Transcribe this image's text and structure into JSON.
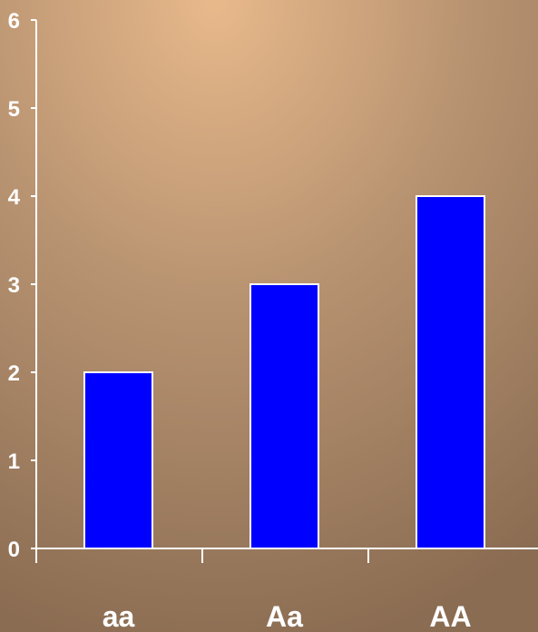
{
  "chart_data": {
    "type": "bar",
    "categories": [
      "aa",
      "Aa",
      "AA"
    ],
    "values": [
      2,
      3,
      4
    ],
    "title": "",
    "xlabel": "",
    "ylabel": "",
    "ylim": [
      0,
      6
    ],
    "yticks": [
      0,
      1,
      2,
      3,
      4,
      5,
      6
    ],
    "grid": false,
    "legend": "none",
    "colors": {
      "bar_fill": "#0000ff",
      "bar_stroke": "#ffffff",
      "axis": "#ffffff",
      "text": "#ffffff",
      "background_light": "#e8b98b",
      "background_dark": "#8a6c52"
    }
  }
}
